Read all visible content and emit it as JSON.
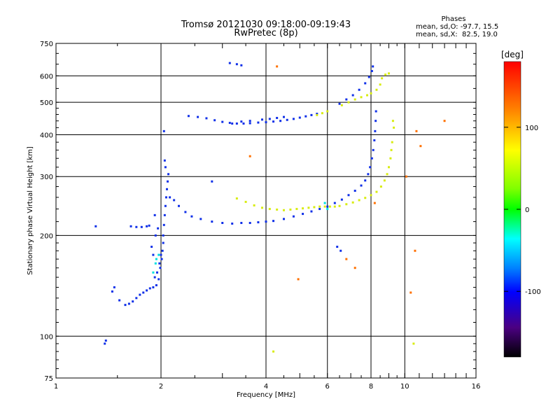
{
  "chart_data": {
    "type": "scatter",
    "title": "Tromsø 20121030 09:18:00-09:19:43",
    "subtitle": "RwPretec (8p)",
    "xlabel": "Frequency [MHz]",
    "ylabel": "Stationary phase Virtual Height [km]",
    "x_scale": "log",
    "y_scale": "log",
    "xlim": [
      1,
      16
    ],
    "ylim": [
      75,
      750
    ],
    "x_ticks": [
      1,
      2,
      4,
      6,
      8,
      10,
      16
    ],
    "x_tick_labels": [
      "1",
      "2",
      "4",
      "6",
      "8",
      "10",
      "16"
    ],
    "y_ticks": [
      75,
      100,
      200,
      300,
      400,
      500,
      600,
      750
    ],
    "y_tick_labels": [
      "75",
      "100",
      "200",
      "300",
      "400",
      "500",
      "600",
      "750"
    ],
    "grid": true,
    "phase_header": "Phases",
    "stats_o": "mean, sd,O: -97.7, 15.5",
    "stats_x": "mean, sd,X:  82.5, 19.0",
    "colorbar": {
      "label": "[deg]",
      "range": [
        -180,
        180
      ],
      "ticks": [
        100,
        0,
        -100
      ],
      "tick_labels": [
        "100",
        "0",
        "-100"
      ]
    },
    "series": [
      {
        "points": [
          [
            1.38,
            95
          ],
          [
            1.39,
            97
          ],
          [
            1.45,
            136
          ],
          [
            1.47,
            140
          ],
          [
            1.52,
            128
          ],
          [
            1.58,
            124
          ],
          [
            1.62,
            125
          ],
          [
            1.66,
            127
          ],
          [
            1.7,
            130
          ],
          [
            1.74,
            133
          ],
          [
            1.78,
            135
          ],
          [
            1.82,
            137
          ],
          [
            1.86,
            139
          ],
          [
            1.9,
            140
          ],
          [
            1.94,
            142
          ],
          [
            1.97,
            148
          ],
          [
            1.99,
            160
          ],
          [
            2.01,
            170
          ],
          [
            2.02,
            180
          ],
          [
            2.03,
            190
          ],
          [
            1.92,
            150
          ],
          [
            1.95,
            155
          ],
          [
            1.98,
            165
          ],
          [
            2.0,
            175
          ],
          [
            1.88,
            185
          ],
          [
            1.9,
            175
          ],
          [
            1.93,
            200
          ],
          [
            1.96,
            210
          ],
          [
            1.92,
            230
          ],
          [
            1.64,
            213
          ],
          [
            1.7,
            212
          ],
          [
            1.76,
            212
          ],
          [
            1.82,
            213
          ],
          [
            1.85,
            214
          ],
          [
            2.03,
            200
          ],
          [
            2.04,
            215
          ],
          [
            2.05,
            230
          ],
          [
            2.06,
            245
          ],
          [
            2.07,
            260
          ],
          [
            2.08,
            275
          ],
          [
            2.09,
            290
          ],
          [
            2.1,
            305
          ],
          [
            2.06,
            320
          ],
          [
            2.05,
            335
          ],
          [
            2.04,
            410
          ],
          [
            2.12,
            260
          ],
          [
            2.18,
            255
          ],
          [
            2.25,
            245
          ],
          [
            2.35,
            235
          ],
          [
            2.45,
            228
          ],
          [
            2.6,
            224
          ],
          [
            2.8,
            220
          ],
          [
            3.0,
            218
          ],
          [
            3.2,
            217
          ],
          [
            3.4,
            218
          ],
          [
            3.6,
            218
          ],
          [
            3.8,
            219
          ],
          [
            4.0,
            220
          ],
          [
            4.2,
            221
          ],
          [
            4.5,
            224
          ],
          [
            4.8,
            228
          ],
          [
            5.1,
            232
          ],
          [
            5.4,
            236
          ],
          [
            5.7,
            240
          ],
          [
            6.0,
            244
          ],
          [
            6.3,
            250
          ],
          [
            6.6,
            256
          ],
          [
            6.9,
            264
          ],
          [
            7.2,
            272
          ],
          [
            7.5,
            282
          ],
          [
            7.7,
            292
          ],
          [
            7.85,
            305
          ],
          [
            7.95,
            320
          ],
          [
            8.05,
            340
          ],
          [
            8.12,
            360
          ],
          [
            8.18,
            385
          ],
          [
            8.22,
            410
          ],
          [
            8.25,
            440
          ],
          [
            8.27,
            470
          ],
          [
            2.4,
            455
          ],
          [
            2.55,
            452
          ],
          [
            2.7,
            448
          ],
          [
            2.85,
            442
          ],
          [
            3.0,
            437
          ],
          [
            3.15,
            434
          ],
          [
            3.3,
            432
          ],
          [
            3.45,
            432
          ],
          [
            3.6,
            433
          ],
          [
            3.8,
            435
          ],
          [
            4.0,
            436
          ],
          [
            4.2,
            438
          ],
          [
            4.4,
            440
          ],
          [
            4.6,
            443
          ],
          [
            4.8,
            446
          ],
          [
            5.0,
            450
          ],
          [
            5.2,
            454
          ],
          [
            5.4,
            458
          ],
          [
            5.6,
            462
          ],
          [
            3.2,
            432
          ],
          [
            3.4,
            438
          ],
          [
            3.6,
            440
          ],
          [
            3.9,
            444
          ],
          [
            4.1,
            446
          ],
          [
            4.3,
            449
          ],
          [
            4.5,
            452
          ],
          [
            6.5,
            495
          ],
          [
            6.8,
            510
          ],
          [
            7.1,
            525
          ],
          [
            7.4,
            545
          ],
          [
            7.7,
            570
          ],
          [
            7.9,
            595
          ],
          [
            8.05,
            620
          ],
          [
            8.1,
            640
          ],
          [
            3.3,
            650
          ],
          [
            3.4,
            645
          ],
          [
            3.15,
            655
          ],
          [
            2.8,
            290
          ],
          [
            6.4,
            185
          ],
          [
            6.55,
            180
          ],
          [
            1.3,
            213
          ]
        ]
      },
      {
        "points": [
          [
            3.3,
            258
          ],
          [
            3.5,
            252
          ],
          [
            3.7,
            246
          ],
          [
            3.9,
            242
          ],
          [
            4.1,
            240
          ],
          [
            4.3,
            239
          ],
          [
            4.5,
            238
          ],
          [
            4.7,
            239
          ],
          [
            4.9,
            240
          ],
          [
            5.1,
            241
          ],
          [
            5.3,
            242
          ],
          [
            5.5,
            243
          ],
          [
            5.7,
            244
          ],
          [
            5.9,
            244
          ],
          [
            6.1,
            244
          ],
          [
            6.3,
            244
          ],
          [
            6.5,
            245
          ],
          [
            6.8,
            248
          ],
          [
            7.1,
            251
          ],
          [
            7.4,
            255
          ],
          [
            7.7,
            259
          ],
          [
            8.0,
            264
          ],
          [
            8.3,
            270
          ],
          [
            8.55,
            280
          ],
          [
            8.75,
            292
          ],
          [
            8.9,
            305
          ],
          [
            9.0,
            320
          ],
          [
            9.1,
            340
          ],
          [
            9.15,
            360
          ],
          [
            9.2,
            380
          ],
          [
            5.6,
            458
          ],
          [
            5.8,
            464
          ],
          [
            6.0,
            470
          ],
          [
            6.6,
            490
          ],
          [
            6.9,
            500
          ],
          [
            7.2,
            510
          ],
          [
            7.5,
            518
          ],
          [
            7.8,
            525
          ],
          [
            8.0,
            532
          ],
          [
            8.3,
            545
          ],
          [
            8.5,
            565
          ],
          [
            8.6,
            590
          ],
          [
            8.8,
            605
          ],
          [
            9.0,
            610
          ],
          [
            9.25,
            440
          ],
          [
            9.3,
            420
          ],
          [
            4.2,
            90
          ],
          [
            10.6,
            95
          ]
        ]
      },
      {
        "points": [
          [
            4.3,
            640
          ],
          [
            3.6,
            345
          ],
          [
            4.95,
            148
          ],
          [
            6.8,
            170
          ],
          [
            7.2,
            160
          ],
          [
            10.8,
            410
          ],
          [
            11.1,
            370
          ],
          [
            10.1,
            300
          ],
          [
            10.7,
            180
          ],
          [
            13.0,
            440
          ],
          [
            8.2,
            250
          ],
          [
            10.4,
            135
          ]
        ]
      },
      {
        "points": [
          [
            1.93,
            165
          ],
          [
            1.94,
            170
          ],
          [
            1.9,
            155
          ],
          [
            1.97,
            175
          ],
          [
            6.0,
            240
          ],
          [
            5.9,
            250
          ]
        ]
      }
    ]
  }
}
